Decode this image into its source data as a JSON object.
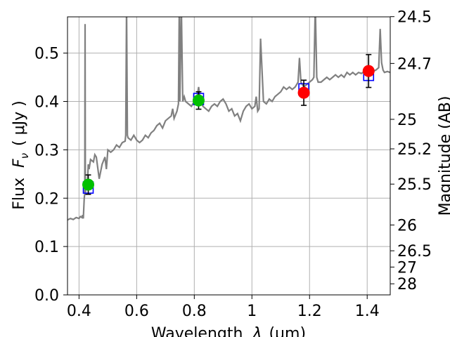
{
  "chart_data": {
    "type": "scatter",
    "xlabel": "Wavelength",
    "xlabel_symbol": "λ",
    "xlabel_unit": "(μm)",
    "ylabel": "Flux",
    "ylabel_symbol": "F",
    "ylabel_sub": "ν",
    "ylabel_unit": "( μJy )",
    "y2label": "Magnitude (AB)",
    "xlim": [
      0.36,
      1.48
    ],
    "ylim": [
      0.0,
      0.575
    ],
    "grid": true,
    "x_ticks": [
      0.4,
      0.6,
      0.8,
      1.0,
      1.2,
      1.4
    ],
    "x_tick_labels": [
      "0.4",
      "0.6",
      "0.8",
      "1",
      "1.2",
      "1.4"
    ],
    "y_ticks": [
      0.0,
      0.1,
      0.2,
      0.3,
      0.4,
      0.5
    ],
    "y_tick_labels": [
      "0.0",
      "0.1",
      "0.2",
      "0.3",
      "0.4",
      "0.5"
    ],
    "mag_ticks": [
      24.5,
      24.7,
      25,
      25.2,
      25.5,
      26,
      26.5,
      27,
      28
    ],
    "mag_tick_labels": [
      "24.5",
      "24.7",
      "25",
      "25.2",
      "25.5",
      "26",
      "26.5",
      "27",
      "28"
    ],
    "colors": {
      "spectrum": "#808080",
      "model_box": "#0000ff",
      "green_point": "#00c000",
      "red_point": "#ff0000",
      "errorbar": "#000000",
      "grid": "#b0b0b0"
    },
    "spectrum": {
      "x": [
        0.36,
        0.37,
        0.38,
        0.39,
        0.4,
        0.405,
        0.41,
        0.412,
        0.415,
        0.418,
        0.42,
        0.421,
        0.422,
        0.425,
        0.43,
        0.432,
        0.435,
        0.44,
        0.45,
        0.455,
        0.46,
        0.47,
        0.48,
        0.49,
        0.495,
        0.5,
        0.51,
        0.52,
        0.53,
        0.54,
        0.55,
        0.56,
        0.562,
        0.565,
        0.568,
        0.57,
        0.58,
        0.59,
        0.6,
        0.61,
        0.62,
        0.63,
        0.64,
        0.65,
        0.66,
        0.67,
        0.68,
        0.69,
        0.7,
        0.71,
        0.72,
        0.725,
        0.73,
        0.74,
        0.745,
        0.748,
        0.75,
        0.755,
        0.76,
        0.765,
        0.77,
        0.78,
        0.79,
        0.8,
        0.81,
        0.815,
        0.82,
        0.83,
        0.84,
        0.85,
        0.86,
        0.87,
        0.88,
        0.89,
        0.9,
        0.91,
        0.92,
        0.93,
        0.94,
        0.95,
        0.96,
        0.97,
        0.98,
        0.99,
        1.0,
        1.01,
        1.015,
        1.02,
        1.025,
        1.03,
        1.04,
        1.05,
        1.06,
        1.07,
        1.08,
        1.09,
        1.1,
        1.11,
        1.12,
        1.13,
        1.14,
        1.15,
        1.16,
        1.165,
        1.17,
        1.18,
        1.19,
        1.2,
        1.21,
        1.215,
        1.22,
        1.225,
        1.23,
        1.24,
        1.25,
        1.26,
        1.27,
        1.28,
        1.29,
        1.3,
        1.31,
        1.32,
        1.33,
        1.34,
        1.35,
        1.36,
        1.37,
        1.38,
        1.39,
        1.4,
        1.41,
        1.42,
        1.43,
        1.44,
        1.445,
        1.45,
        1.455,
        1.46,
        1.47,
        1.48
      ],
      "y": [
        0.155,
        0.158,
        0.156,
        0.16,
        0.158,
        0.162,
        0.16,
        0.165,
        0.158,
        0.2,
        0.21,
        0.56,
        0.21,
        0.23,
        0.24,
        0.27,
        0.26,
        0.28,
        0.275,
        0.29,
        0.285,
        0.24,
        0.27,
        0.285,
        0.26,
        0.3,
        0.295,
        0.3,
        0.31,
        0.305,
        0.315,
        0.318,
        0.33,
        0.6,
        0.33,
        0.325,
        0.32,
        0.33,
        0.32,
        0.315,
        0.32,
        0.33,
        0.325,
        0.335,
        0.34,
        0.35,
        0.355,
        0.345,
        0.36,
        0.365,
        0.37,
        0.385,
        0.365,
        0.38,
        0.395,
        0.6,
        0.4,
        0.6,
        0.4,
        0.41,
        0.4,
        0.395,
        0.39,
        0.4,
        0.41,
        0.43,
        0.405,
        0.39,
        0.385,
        0.38,
        0.39,
        0.395,
        0.39,
        0.4,
        0.405,
        0.395,
        0.38,
        0.385,
        0.37,
        0.375,
        0.36,
        0.38,
        0.39,
        0.395,
        0.385,
        0.39,
        0.41,
        0.38,
        0.385,
        0.53,
        0.4,
        0.395,
        0.405,
        0.4,
        0.41,
        0.415,
        0.42,
        0.43,
        0.425,
        0.43,
        0.425,
        0.43,
        0.44,
        0.49,
        0.44,
        0.43,
        0.435,
        0.44,
        0.445,
        0.45,
        0.6,
        0.45,
        0.44,
        0.44,
        0.445,
        0.45,
        0.445,
        0.45,
        0.455,
        0.45,
        0.455,
        0.45,
        0.46,
        0.455,
        0.46,
        0.455,
        0.46,
        0.458,
        0.462,
        0.458,
        0.46,
        0.462,
        0.465,
        0.47,
        0.55,
        0.48,
        0.465,
        0.46,
        0.462,
        0.46
      ]
    },
    "model_points": [
      {
        "x": 0.432,
        "y": 0.222
      },
      {
        "x": 0.815,
        "y": 0.405
      },
      {
        "x": 1.18,
        "y": 0.425
      },
      {
        "x": 1.405,
        "y": 0.455
      }
    ],
    "observed_points": [
      {
        "x": 0.432,
        "y": 0.228,
        "yerr": 0.02,
        "color": "green"
      },
      {
        "x": 0.815,
        "y": 0.402,
        "yerr": 0.018,
        "color": "green"
      },
      {
        "x": 1.18,
        "y": 0.418,
        "yerr": 0.026,
        "color": "red"
      },
      {
        "x": 1.405,
        "y": 0.463,
        "yerr": 0.034,
        "color": "red"
      }
    ]
  }
}
